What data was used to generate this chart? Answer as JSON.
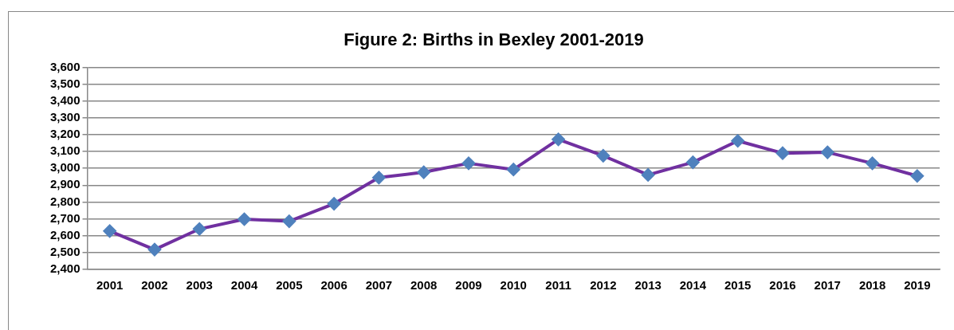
{
  "chart_data": {
    "type": "line",
    "title": "Figure 2: Births in Bexley 2001-2019",
    "categories": [
      "2001",
      "2002",
      "2003",
      "2004",
      "2005",
      "2006",
      "2007",
      "2008",
      "2009",
      "2010",
      "2011",
      "2012",
      "2013",
      "2014",
      "2015",
      "2016",
      "2017",
      "2018",
      "2019"
    ],
    "series": [
      {
        "color": "#7030a0",
        "colors": [
          "#4f81bd",
          "#4f81bd",
          "#4f81bd",
          "#4f81bd",
          "#4f81bd",
          "#4f81bd",
          "#4f81bd",
          "#4f81bd",
          "#4f81bd",
          "#4f81bd",
          "#4f81bd",
          "#4f81bd",
          "#4f81bd",
          "#4f81bd",
          "#4f81bd",
          "#4f81bd",
          "#4f81bd",
          "#4f81bd",
          "#4f81bd"
        ],
        "values": [
          2628,
          2518,
          2640,
          2698,
          2686,
          2790,
          2945,
          2977,
          3030,
          2993,
          3172,
          3075,
          2961,
          3036,
          3163,
          3090,
          3095,
          3030,
          2955
        ]
      }
    ],
    "ylim": [
      2400,
      3600
    ],
    "yticks": [
      {
        "value": 2400,
        "label": "2,400"
      },
      {
        "value": 2500,
        "label": "2,500"
      },
      {
        "value": 2600,
        "label": "2,600"
      },
      {
        "value": 2700,
        "label": "2,700"
      },
      {
        "value": 2800,
        "label": "2,800"
      },
      {
        "value": 2900,
        "label": "2,900"
      },
      {
        "value": 3000,
        "label": "3,000"
      },
      {
        "value": 3100,
        "label": "3,100"
      },
      {
        "value": 3200,
        "label": "3,200"
      },
      {
        "value": 3300,
        "label": "3,300"
      },
      {
        "value": 3400,
        "label": "3,400"
      },
      {
        "value": 3500,
        "label": "3,500"
      },
      {
        "value": 3600,
        "label": "3,600"
      }
    ],
    "grid": "y",
    "legend": false,
    "marker": "diamond",
    "line_style": "solid"
  }
}
